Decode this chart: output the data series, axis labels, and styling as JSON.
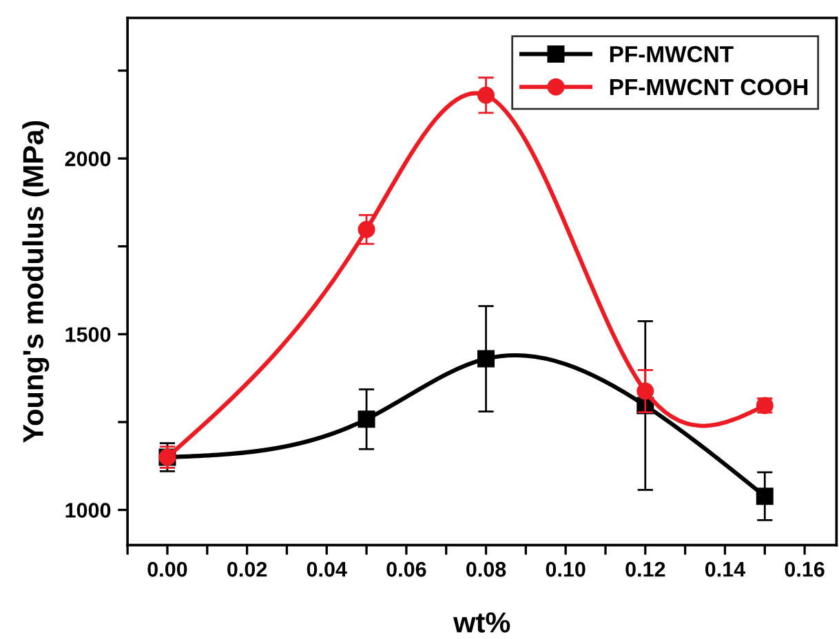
{
  "chart_data": {
    "type": "line",
    "xlabel": "wt%",
    "ylabel": "Young's modulus (MPa)",
    "x": [
      0.0,
      0.05,
      0.08,
      0.12,
      0.15
    ],
    "series": [
      {
        "name": "PF-MWCNT",
        "color": "#000000",
        "marker": "square",
        "values": [
          1150,
          1258,
          1430,
          1297,
          1039
        ],
        "errors": [
          40,
          85,
          150,
          240,
          68
        ]
      },
      {
        "name": "PF-MWCNT COOH",
        "color": "#ed1c24",
        "marker": "circle",
        "values": [
          1150,
          1798,
          2180,
          1338,
          1297
        ],
        "errors": [
          30,
          41,
          50,
          60,
          20
        ]
      }
    ],
    "xlim": [
      -0.01,
      0.168
    ],
    "ylim": [
      900,
      2400
    ],
    "xticks": [
      {
        "value": -0.01,
        "label": null
      },
      {
        "value": 0.0,
        "label": "0.00"
      },
      {
        "value": 0.01,
        "label": null
      },
      0.02,
      {
        "value": 0.03,
        "label": null
      },
      0.04,
      {
        "value": 0.05,
        "label": null
      },
      0.06,
      {
        "value": 0.07,
        "label": null
      },
      0.08,
      {
        "value": 0.09,
        "label": null
      },
      {
        "value": 0.1,
        "label": "0.10"
      },
      {
        "value": 0.11,
        "label": null
      },
      0.12,
      {
        "value": 0.13,
        "label": null
      },
      0.14,
      {
        "value": 0.15,
        "label": null
      },
      0.16
    ],
    "yticks": [
      1000,
      {
        "value": 1250,
        "label": null
      },
      1500,
      {
        "value": 1750,
        "label": null
      },
      2000,
      {
        "value": 2250,
        "label": null
      }
    ],
    "grid": false,
    "legend": "top right",
    "line_style": "solid"
  }
}
